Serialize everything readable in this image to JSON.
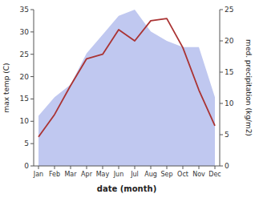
{
  "chart_data": {
    "type": "line",
    "xlabel": "date (month)",
    "ylabel": "max temp (C)",
    "y2label": "med. precipitation (kg/m2)",
    "categories": [
      "Jan",
      "Feb",
      "Mar",
      "Apr",
      "May",
      "Jun",
      "Jul",
      "Aug",
      "Sep",
      "Oct",
      "Nov",
      "Dec"
    ],
    "series": [
      {
        "type": "line",
        "color": "#aa3333",
        "values": [
          6.5,
          11.5,
          18.0,
          24.0,
          25.0,
          30.5,
          28.0,
          32.5,
          33.0,
          26.5,
          17.0,
          9.0
        ]
      },
      {
        "type": "area",
        "color": "#c0c8f0",
        "axis": "y2",
        "values": [
          8.0,
          11.0,
          13.0,
          18.0,
          21.0,
          24.0,
          25.0,
          21.5,
          20.0,
          19.0,
          19.0,
          11.0
        ]
      }
    ],
    "ylim": [
      0,
      35
    ],
    "yticks": [
      0,
      5,
      10,
      15,
      20,
      25,
      30,
      35
    ],
    "y2lim": [
      0,
      25
    ],
    "y2ticks": [
      0,
      5,
      10,
      15,
      20,
      25
    ],
    "grid": false
  }
}
